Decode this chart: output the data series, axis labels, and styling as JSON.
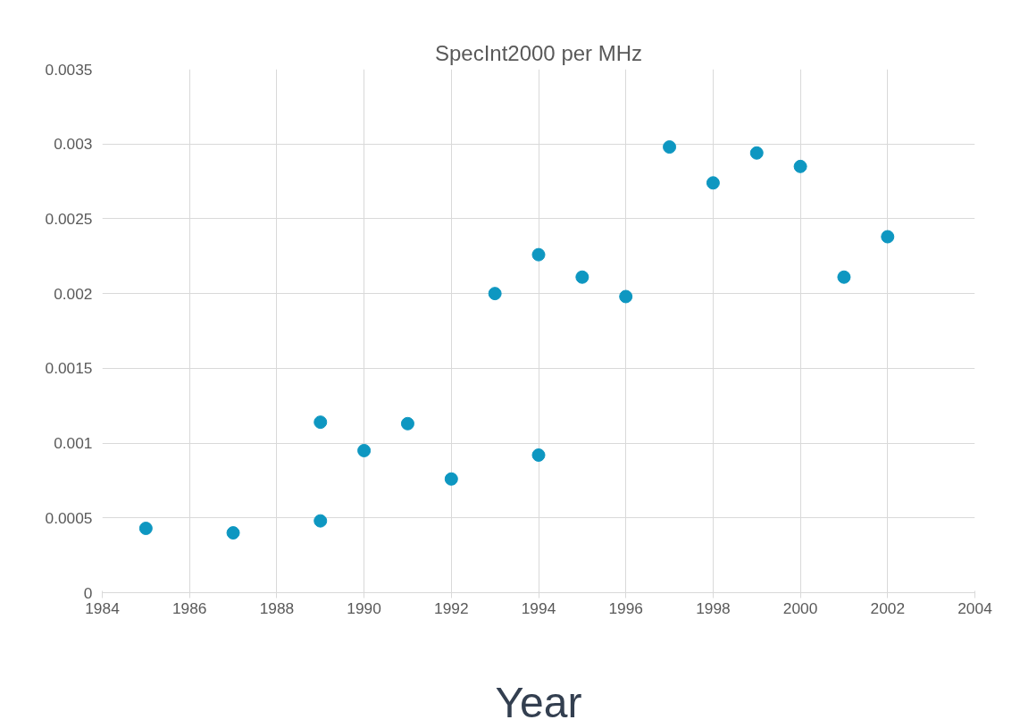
{
  "chart_data": {
    "type": "scatter",
    "title": "SpecInt2000 per MHz",
    "xlabel": "Year",
    "x": [
      1985,
      1987,
      1989,
      1989,
      1990,
      1991,
      1992,
      1993,
      1994,
      1994,
      1995,
      1996,
      1997,
      1998,
      1999,
      2000,
      2001,
      2002
    ],
    "values": [
      0.00043,
      0.0004,
      0.00048,
      0.00114,
      0.00095,
      0.00113,
      0.00076,
      0.002,
      0.00226,
      0.00092,
      0.00211,
      0.00198,
      0.00298,
      0.00274,
      0.00294,
      0.00285,
      0.00211,
      0.00238
    ],
    "color": "#0e97c1",
    "marker": "circle",
    "xlim": [
      1984,
      2004
    ],
    "xticks": [
      1984,
      1986,
      1988,
      1990,
      1992,
      1994,
      1996,
      1998,
      2000,
      2002,
      2004
    ],
    "ylim": [
      0,
      0.0035
    ],
    "yticks": [
      {
        "value": 0,
        "label": "0"
      },
      {
        "value": 0.0005,
        "label": "0.0005"
      },
      {
        "value": 0.001,
        "label": "0.001"
      },
      {
        "value": 0.0015,
        "label": "0.0015"
      },
      {
        "value": 0.002,
        "label": "0.002"
      },
      {
        "value": 0.0025,
        "label": "0.0025"
      },
      {
        "value": 0.003,
        "label": "0.003"
      },
      {
        "value": 0.0035,
        "label": "0.0035"
      }
    ],
    "grid": true
  }
}
